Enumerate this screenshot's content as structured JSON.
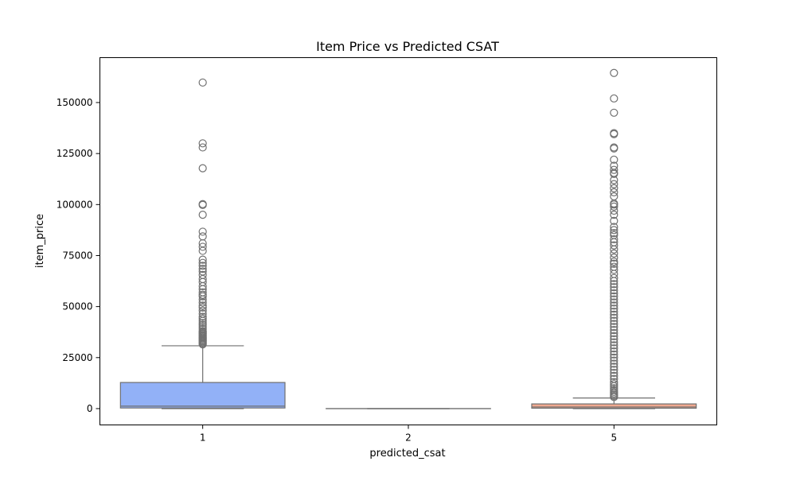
{
  "chart_data": {
    "type": "box",
    "title": "Item Price vs Predicted CSAT",
    "xlabel": "predicted_csat",
    "ylabel": "item_price",
    "categories": [
      "1",
      "2",
      "5"
    ],
    "ylim": [
      -8000,
      172000
    ],
    "yticks": [
      0,
      25000,
      50000,
      75000,
      100000,
      125000,
      150000
    ],
    "yticklabels": [
      "0",
      "25000",
      "50000",
      "75000",
      "100000",
      "125000",
      "150000"
    ],
    "grid": false,
    "legend": "none",
    "colors": {
      "box_1": "#92b1f7",
      "box_2": "#d9d9d9",
      "box_5": "#f0a88f",
      "line": "#707070",
      "flier": "#707070"
    },
    "boxes": [
      {
        "category": "1",
        "q1": 300,
        "median": 1200,
        "q3": 12800,
        "whisker_low": 0,
        "whisker_high": 30800,
        "outliers": [
          159800,
          130000,
          128000,
          117800,
          100200,
          99800,
          95000,
          86700,
          84400,
          81000,
          79300,
          77300,
          73000,
          71400,
          70000,
          68500,
          67200,
          65500,
          63500,
          62000,
          60000,
          58500,
          57000,
          55800,
          55000,
          53500,
          52000,
          50500,
          49500,
          48000,
          46500,
          45000,
          44000,
          43000,
          42000,
          41000,
          40000,
          39000,
          38000,
          37500,
          37000,
          36500,
          36000,
          35500,
          35000,
          34500,
          34000,
          33500,
          33000,
          32500,
          32000,
          31500
        ]
      },
      {
        "category": "2",
        "q1": 0,
        "median": 0,
        "q3": 0,
        "whisker_low": 0,
        "whisker_high": 0,
        "outliers": []
      },
      {
        "category": "5",
        "q1": 200,
        "median": 800,
        "q3": 2300,
        "whisker_low": 0,
        "whisker_high": 5200,
        "outliers": [
          164500,
          152000,
          145000,
          135000,
          134500,
          128000,
          127500,
          122000,
          119000,
          117000,
          115500,
          115000,
          112000,
          110000,
          108000,
          106000,
          104000,
          100500,
          100000,
          99000,
          97000,
          95000,
          92000,
          89000,
          87500,
          86000,
          85000,
          83000,
          81500,
          80000,
          78000,
          76000,
          74000,
          72000,
          71000,
          69500,
          68000,
          66000,
          64000,
          62500,
          61000,
          59500,
          58000,
          56500,
          55000,
          53500,
          52000,
          50500,
          49000,
          47500,
          46000,
          44500,
          43000,
          41500,
          40000,
          38500,
          37000,
          35500,
          34000,
          32500,
          31000,
          29500,
          28000,
          26500,
          25000,
          23500,
          22000,
          20500,
          19000,
          17500,
          16000,
          14500,
          13000,
          12000,
          11000,
          10000,
          9000,
          8200,
          7500,
          6800,
          6200,
          5700
        ]
      }
    ]
  }
}
